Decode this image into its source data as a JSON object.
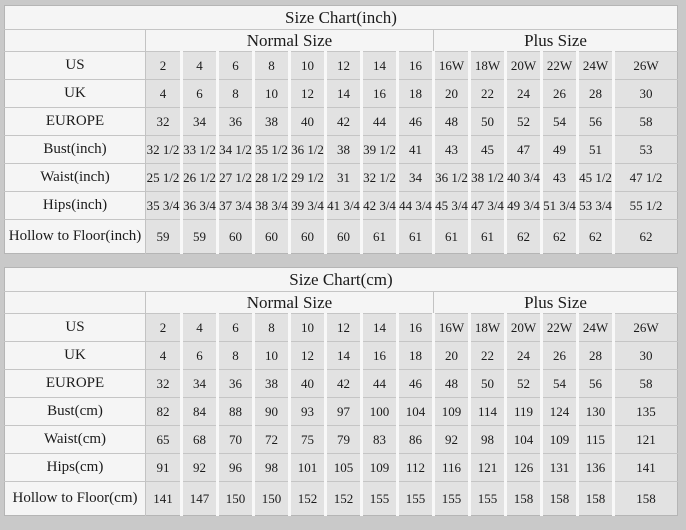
{
  "page": {
    "description": "Dress size conversion charts in inches and centimeters"
  },
  "colors": {
    "page_bg": "#c9c9c9",
    "panel_bg": "#f5f5f5",
    "cell_bg": "#e2e2e2",
    "grid_line": "#c5c5c5",
    "cell_gap": "#f8f8f8",
    "text": "#1b1b1b"
  },
  "chart_data": [
    {
      "type": "table",
      "title": "Size Chart(inch)",
      "column_groups": [
        {
          "label": "Normal Size",
          "span": 8
        },
        {
          "label": "Plus Size",
          "span": 6
        }
      ],
      "rows": [
        {
          "label": "US",
          "values": [
            "2",
            "4",
            "6",
            "8",
            "10",
            "12",
            "14",
            "16",
            "16W",
            "18W",
            "20W",
            "22W",
            "24W",
            "26W"
          ]
        },
        {
          "label": "UK",
          "values": [
            "4",
            "6",
            "8",
            "10",
            "12",
            "14",
            "16",
            "18",
            "20",
            "22",
            "24",
            "26",
            "28",
            "30"
          ]
        },
        {
          "label": "EUROPE",
          "values": [
            "32",
            "34",
            "36",
            "38",
            "40",
            "42",
            "44",
            "46",
            "48",
            "50",
            "52",
            "54",
            "56",
            "58"
          ]
        },
        {
          "label": "Bust(inch)",
          "values": [
            "32 1/2",
            "33 1/2",
            "34 1/2",
            "35 1/2",
            "36 1/2",
            "38",
            "39 1/2",
            "41",
            "43",
            "45",
            "47",
            "49",
            "51",
            "53"
          ]
        },
        {
          "label": "Waist(inch)",
          "values": [
            "25 1/2",
            "26 1/2",
            "27 1/2",
            "28 1/2",
            "29 1/2",
            "31",
            "32 1/2",
            "34",
            "36 1/2",
            "38 1/2",
            "40 3/4",
            "43",
            "45 1/2",
            "47 1/2"
          ]
        },
        {
          "label": "Hips(inch)",
          "values": [
            "35 3/4",
            "36 3/4",
            "37 3/4",
            "38 3/4",
            "39 3/4",
            "41 3/4",
            "42 3/4",
            "44 3/4",
            "45 3/4",
            "47 3/4",
            "49 3/4",
            "51 3/4",
            "53 3/4",
            "55 1/2"
          ]
        },
        {
          "label": "Hollow to Floor(inch)",
          "values": [
            "59",
            "59",
            "60",
            "60",
            "60",
            "60",
            "61",
            "61",
            "61",
            "61",
            "62",
            "62",
            "62",
            "62"
          ]
        }
      ]
    },
    {
      "type": "table",
      "title": "Size Chart(cm)",
      "column_groups": [
        {
          "label": "Normal Size",
          "span": 8
        },
        {
          "label": "Plus Size",
          "span": 6
        }
      ],
      "rows": [
        {
          "label": "US",
          "values": [
            "2",
            "4",
            "6",
            "8",
            "10",
            "12",
            "14",
            "16",
            "16W",
            "18W",
            "20W",
            "22W",
            "24W",
            "26W"
          ]
        },
        {
          "label": "UK",
          "values": [
            "4",
            "6",
            "8",
            "10",
            "12",
            "14",
            "16",
            "18",
            "20",
            "22",
            "24",
            "26",
            "28",
            "30"
          ]
        },
        {
          "label": "EUROPE",
          "values": [
            "32",
            "34",
            "36",
            "38",
            "40",
            "42",
            "44",
            "46",
            "48",
            "50",
            "52",
            "54",
            "56",
            "58"
          ]
        },
        {
          "label": "Bust(cm)",
          "values": [
            "82",
            "84",
            "88",
            "90",
            "93",
            "97",
            "100",
            "104",
            "109",
            "114",
            "119",
            "124",
            "130",
            "135"
          ]
        },
        {
          "label": "Waist(cm)",
          "values": [
            "65",
            "68",
            "70",
            "72",
            "75",
            "79",
            "83",
            "86",
            "92",
            "98",
            "104",
            "109",
            "115",
            "121"
          ]
        },
        {
          "label": "Hips(cm)",
          "values": [
            "91",
            "92",
            "96",
            "98",
            "101",
            "105",
            "109",
            "112",
            "116",
            "121",
            "126",
            "131",
            "136",
            "141"
          ]
        },
        {
          "label": "Hollow to Floor(cm)",
          "values": [
            "141",
            "147",
            "150",
            "150",
            "152",
            "152",
            "155",
            "155",
            "155",
            "155",
            "158",
            "158",
            "158",
            "158"
          ]
        }
      ]
    }
  ]
}
